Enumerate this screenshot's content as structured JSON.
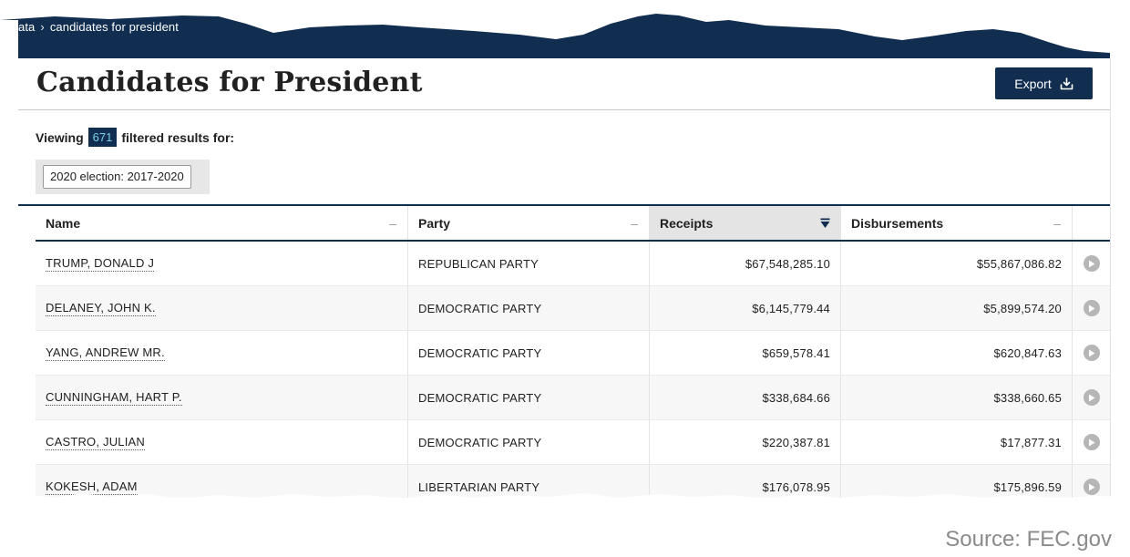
{
  "breadcrumb": {
    "parent": "ata",
    "separator": "›",
    "current": "candidates for president"
  },
  "page": {
    "title": "Candidates for President",
    "export_label": "Export"
  },
  "results": {
    "prefix": "Viewing",
    "count": "671",
    "suffix": "filtered results for:"
  },
  "filters": [
    {
      "label": "2020 election: 2017-2020"
    }
  ],
  "table": {
    "columns": [
      {
        "label": "Name",
        "sort": "none"
      },
      {
        "label": "Party",
        "sort": "none"
      },
      {
        "label": "Receipts",
        "sort": "descending"
      },
      {
        "label": "Disbursements",
        "sort": "none"
      }
    ],
    "rows": [
      {
        "name": "TRUMP, DONALD J",
        "party": "REPUBLICAN PARTY",
        "receipts": "$67,548,285.10",
        "disbursements": "$55,867,086.82"
      },
      {
        "name": "DELANEY, JOHN K.",
        "party": "DEMOCRATIC PARTY",
        "receipts": "$6,145,779.44",
        "disbursements": "$5,899,574.20"
      },
      {
        "name": "YANG, ANDREW MR.",
        "party": "DEMOCRATIC PARTY",
        "receipts": "$659,578.41",
        "disbursements": "$620,847.63"
      },
      {
        "name": "CUNNINGHAM, HART P.",
        "party": "DEMOCRATIC PARTY",
        "receipts": "$338,684.66",
        "disbursements": "$338,660.65"
      },
      {
        "name": "CASTRO, JULIAN",
        "party": "DEMOCRATIC PARTY",
        "receipts": "$220,387.81",
        "disbursements": "$17,877.31"
      },
      {
        "name": "KOKESH, ADAM",
        "party": "LIBERTARIAN PARTY",
        "receipts": "$176,078.95",
        "disbursements": "$175,896.59"
      }
    ]
  },
  "source": "Source: FEC.gov",
  "colors": {
    "navy": "#112e51",
    "badge_text": "#7ad0e3",
    "sorted_header": "#e4e4e4"
  },
  "icons": {
    "export": "download-tray-icon",
    "sort": "sort-descending-icon",
    "row_action": "play-circle-icon"
  }
}
